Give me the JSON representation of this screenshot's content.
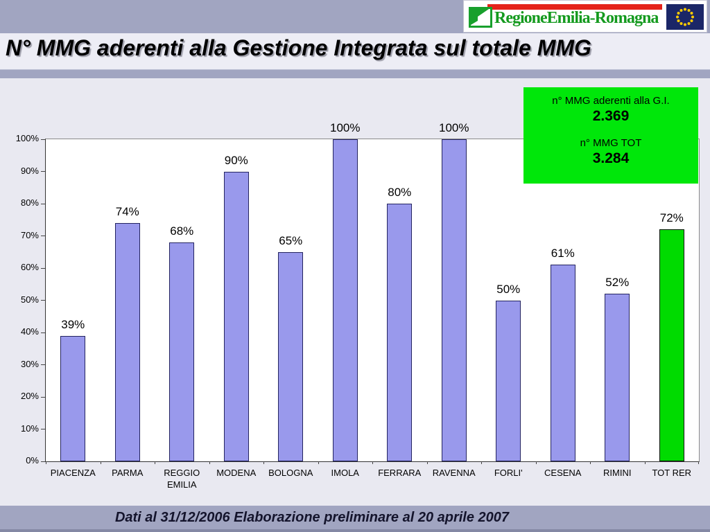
{
  "header": {
    "logo_text": "RegioneEmilia-Romagna",
    "logo_icon": "emilia-romagna-region-shape",
    "eu_flag_icon": "european-union-flag"
  },
  "title": "N° MMG aderenti alla Gestione Integrata sul totale MMG",
  "info_box": {
    "line1_label": "n° MMG aderenti alla G.I.",
    "line1_value": "2.369",
    "line2_label": "n° MMG TOT",
    "line2_value": "3.284",
    "bg_color": "#00E70A"
  },
  "footer": "Dati al 31/12/2006 Elaborazione preliminare al 20 aprile 2007",
  "chart_data": {
    "type": "bar",
    "title": "",
    "xlabel": "",
    "ylabel": "",
    "categories": [
      "PIACENZA",
      "PARMA",
      "REGGIO EMILIA",
      "MODENA",
      "BOLOGNA",
      "IMOLA",
      "FERRARA",
      "RAVENNA",
      "FORLI'",
      "CESENA",
      "RIMINI",
      "TOT RER"
    ],
    "values": [
      39,
      74,
      68,
      90,
      65,
      100,
      80,
      100,
      50,
      61,
      52,
      72
    ],
    "value_labels": [
      "39%",
      "74%",
      "68%",
      "90%",
      "65%",
      "100%",
      "80%",
      "100%",
      "50%",
      "61%",
      "52%",
      "72%"
    ],
    "ylim": [
      0,
      100
    ],
    "yticks": [
      "0%",
      "10%",
      "20%",
      "30%",
      "40%",
      "50%",
      "60%",
      "70%",
      "80%",
      "90%",
      "100%"
    ],
    "grid": false,
    "legend": false,
    "bar_color": "#9999EC",
    "bar_border": "#23235F",
    "highlight_index": 11,
    "highlight_color": "#00DB00",
    "highlight_border": "#0A120A"
  }
}
